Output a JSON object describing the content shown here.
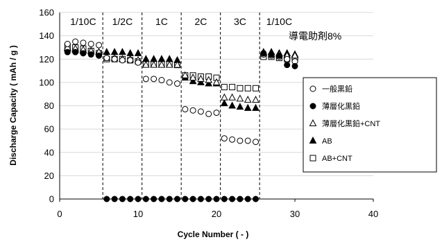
{
  "chart_data": {
    "type": "scatter",
    "xlabel": "Cycle Number ( - )",
    "ylabel": "Discharge Capacity ( mAh / g )",
    "xlim": [
      0,
      40
    ],
    "ylim": [
      0,
      160
    ],
    "x_ticks": [
      0,
      10,
      20,
      30,
      40
    ],
    "y_ticks": [
      0,
      20,
      40,
      60,
      80,
      100,
      120,
      140,
      160
    ],
    "annotation": "導電助剤8%",
    "phase_boundaries": [
      5.5,
      10.5,
      15.5,
      20.5,
      25.5
    ],
    "phases": [
      {
        "label": "1/10C",
        "x_center": 3
      },
      {
        "label": "1/2C",
        "x_center": 8
      },
      {
        "label": "1C",
        "x_center": 13
      },
      {
        "label": "2C",
        "x_center": 18
      },
      {
        "label": "3C",
        "x_center": 23
      },
      {
        "label": "1/10C",
        "x_center": 28
      }
    ],
    "legend_position": "right",
    "series": [
      {
        "name": "一般黒鉛",
        "marker": "open-circle",
        "points": [
          [
            1,
            133
          ],
          [
            2,
            135
          ],
          [
            3,
            134
          ],
          [
            4,
            133
          ],
          [
            5,
            132
          ],
          [
            6,
            121
          ],
          [
            7,
            120
          ],
          [
            8,
            119
          ],
          [
            9,
            119
          ],
          [
            10,
            117
          ],
          [
            11,
            103
          ],
          [
            12,
            103
          ],
          [
            13,
            102
          ],
          [
            14,
            100
          ],
          [
            15,
            99
          ],
          [
            16,
            77
          ],
          [
            17,
            76
          ],
          [
            18,
            75
          ],
          [
            19,
            73
          ],
          [
            20,
            74
          ],
          [
            21,
            52
          ],
          [
            22,
            51
          ],
          [
            23,
            50
          ],
          [
            24,
            50
          ],
          [
            25,
            49
          ],
          [
            26,
            124
          ],
          [
            27,
            123
          ],
          [
            28,
            122
          ],
          [
            29,
            120
          ],
          [
            30,
            118
          ]
        ]
      },
      {
        "name": "薄層化黒鉛",
        "marker": "filled-circle",
        "points": [
          [
            1,
            126
          ],
          [
            2,
            126
          ],
          [
            3,
            125
          ],
          [
            4,
            124
          ],
          [
            5,
            123
          ],
          [
            6,
            0
          ],
          [
            7,
            0
          ],
          [
            8,
            0
          ],
          [
            9,
            0
          ],
          [
            10,
            0
          ],
          [
            11,
            0
          ],
          [
            12,
            0
          ],
          [
            13,
            0
          ],
          [
            14,
            0
          ],
          [
            15,
            0
          ],
          [
            16,
            0
          ],
          [
            17,
            0
          ],
          [
            18,
            0
          ],
          [
            19,
            0
          ],
          [
            20,
            0
          ],
          [
            21,
            0
          ],
          [
            22,
            0
          ],
          [
            23,
            0
          ],
          [
            24,
            0
          ],
          [
            25,
            0
          ],
          [
            26,
            125
          ],
          [
            27,
            124
          ],
          [
            28,
            123
          ],
          [
            29,
            115
          ],
          [
            30,
            114
          ]
        ]
      },
      {
        "name": "薄層化黒鉛+CNT",
        "marker": "open-triangle",
        "points": [
          [
            1,
            130
          ],
          [
            2,
            129
          ],
          [
            3,
            128
          ],
          [
            4,
            127
          ],
          [
            5,
            126
          ],
          [
            6,
            121
          ],
          [
            7,
            121
          ],
          [
            8,
            120
          ],
          [
            9,
            120
          ],
          [
            10,
            119
          ],
          [
            11,
            115
          ],
          [
            12,
            115
          ],
          [
            13,
            115
          ],
          [
            14,
            115
          ],
          [
            15,
            115
          ],
          [
            16,
            106
          ],
          [
            17,
            104
          ],
          [
            18,
            103
          ],
          [
            19,
            102
          ],
          [
            20,
            100
          ],
          [
            21,
            87
          ],
          [
            22,
            87
          ],
          [
            23,
            86
          ],
          [
            24,
            85
          ],
          [
            25,
            85
          ],
          [
            26,
            125
          ],
          [
            27,
            124
          ],
          [
            28,
            124
          ],
          [
            29,
            123
          ],
          [
            30,
            123
          ]
        ]
      },
      {
        "name": "AB",
        "marker": "filled-triangle",
        "points": [
          [
            1,
            129
          ],
          [
            2,
            128
          ],
          [
            3,
            127
          ],
          [
            4,
            127
          ],
          [
            5,
            126
          ],
          [
            6,
            126
          ],
          [
            7,
            126
          ],
          [
            8,
            126
          ],
          [
            9,
            125
          ],
          [
            10,
            125
          ],
          [
            11,
            120
          ],
          [
            12,
            120
          ],
          [
            13,
            120
          ],
          [
            14,
            120
          ],
          [
            15,
            119
          ],
          [
            16,
            104
          ],
          [
            17,
            101
          ],
          [
            18,
            100
          ],
          [
            19,
            99
          ],
          [
            20,
            99
          ],
          [
            21,
            82
          ],
          [
            22,
            80
          ],
          [
            23,
            79
          ],
          [
            24,
            78
          ],
          [
            25,
            78
          ],
          [
            26,
            126
          ],
          [
            27,
            126
          ],
          [
            28,
            125
          ],
          [
            29,
            125
          ],
          [
            30,
            124
          ]
        ]
      },
      {
        "name": "AB+CNT",
        "marker": "open-square",
        "points": [
          [
            1,
            131
          ],
          [
            2,
            130
          ],
          [
            3,
            129
          ],
          [
            4,
            127
          ],
          [
            5,
            125
          ],
          [
            6,
            120
          ],
          [
            7,
            120
          ],
          [
            8,
            120
          ],
          [
            9,
            119
          ],
          [
            10,
            118
          ],
          [
            11,
            116
          ],
          [
            12,
            116
          ],
          [
            13,
            116
          ],
          [
            14,
            116
          ],
          [
            15,
            115
          ],
          [
            16,
            106
          ],
          [
            17,
            106
          ],
          [
            18,
            105
          ],
          [
            19,
            105
          ],
          [
            20,
            104
          ],
          [
            21,
            96
          ],
          [
            22,
            96
          ],
          [
            23,
            95
          ],
          [
            24,
            95
          ],
          [
            25,
            95
          ],
          [
            26,
            122
          ],
          [
            27,
            122
          ],
          [
            28,
            121
          ],
          [
            29,
            120
          ],
          [
            30,
            120
          ]
        ]
      }
    ]
  }
}
